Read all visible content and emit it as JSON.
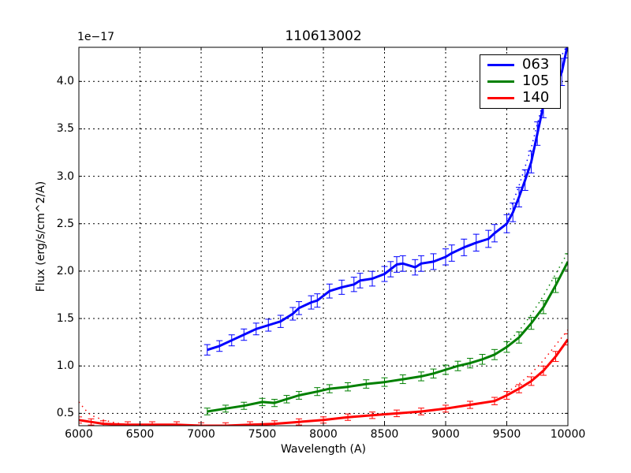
{
  "chart_data": {
    "type": "line",
    "title": "110613002",
    "xlabel": "Wavelength (A)",
    "ylabel": "Flux (erg/s/cm^2/A)",
    "y_offset_label": "1e−17",
    "xlim": [
      6000,
      10000
    ],
    "ylim": [
      0.37,
      4.36
    ],
    "grid": true,
    "legend_position": "upper right",
    "xticks": [
      "6000",
      "6500",
      "7000",
      "7500",
      "8000",
      "8500",
      "9000",
      "9500",
      "10000"
    ],
    "yticks": [
      "0.5",
      "1.0",
      "1.5",
      "2.0",
      "2.5",
      "3.0",
      "3.5",
      "4.0"
    ],
    "series": [
      {
        "name": "063",
        "color": "#0000ff",
        "error_bars": true,
        "dotted_model": true,
        "x": [
          7050,
          7150,
          7250,
          7350,
          7450,
          7550,
          7650,
          7750,
          7800,
          7900,
          7950,
          8050,
          8150,
          8250,
          8300,
          8400,
          8500,
          8550,
          8600,
          8650,
          8750,
          8800,
          8900,
          9000,
          9050,
          9150,
          9250,
          9350,
          9400,
          9500,
          9550,
          9600,
          9650,
          9700,
          9750,
          9800,
          9850,
          9900,
          9950,
          10000
        ],
        "values": [
          1.17,
          1.21,
          1.27,
          1.33,
          1.39,
          1.43,
          1.47,
          1.55,
          1.61,
          1.67,
          1.69,
          1.79,
          1.83,
          1.86,
          1.9,
          1.92,
          1.97,
          2.02,
          2.07,
          2.08,
          2.04,
          2.08,
          2.1,
          2.15,
          2.19,
          2.25,
          2.3,
          2.34,
          2.4,
          2.5,
          2.62,
          2.78,
          2.96,
          3.15,
          3.45,
          3.75,
          3.9,
          3.97,
          4.1,
          4.4
        ],
        "model_values_high_end": {
          "x": [
            9500,
            9600,
            9700,
            9800,
            9900,
            10000
          ],
          "values": [
            2.55,
            2.9,
            3.3,
            3.8,
            4.15,
            4.4
          ]
        }
      },
      {
        "name": "105",
        "color": "#008000",
        "error_bars": true,
        "dotted_model": true,
        "x": [
          7050,
          7200,
          7350,
          7500,
          7600,
          7700,
          7800,
          7950,
          8050,
          8200,
          8350,
          8500,
          8650,
          8800,
          8900,
          9000,
          9100,
          9200,
          9300,
          9400,
          9500,
          9600,
          9700,
          9800,
          9900,
          10000
        ],
        "values": [
          0.52,
          0.55,
          0.58,
          0.62,
          0.61,
          0.65,
          0.69,
          0.73,
          0.76,
          0.78,
          0.81,
          0.83,
          0.86,
          0.89,
          0.92,
          0.96,
          1.0,
          1.03,
          1.07,
          1.12,
          1.2,
          1.3,
          1.45,
          1.62,
          1.85,
          2.1
        ],
        "model_values_high_end": {
          "x": [
            9500,
            9600,
            9700,
            9800,
            9900,
            10000
          ],
          "values": [
            1.24,
            1.37,
            1.54,
            1.74,
            1.97,
            2.2
          ]
        }
      },
      {
        "name": "140",
        "color": "#ff0000",
        "error_bars": true,
        "dotted_model": true,
        "x": [
          6000,
          6100,
          6200,
          6400,
          6600,
          6800,
          7000,
          7200,
          7400,
          7600,
          7800,
          8000,
          8200,
          8400,
          8600,
          8800,
          9000,
          9200,
          9400,
          9500,
          9600,
          9700,
          9800,
          9900,
          10000
        ],
        "values": [
          0.43,
          0.41,
          0.39,
          0.38,
          0.38,
          0.38,
          0.37,
          0.37,
          0.38,
          0.39,
          0.41,
          0.43,
          0.46,
          0.48,
          0.5,
          0.52,
          0.55,
          0.59,
          0.63,
          0.69,
          0.76,
          0.84,
          0.95,
          1.1,
          1.28
        ],
        "model_values_low_end": {
          "x": [
            6000,
            6050,
            6100,
            6200,
            6300,
            6400
          ],
          "values": [
            0.62,
            0.54,
            0.48,
            0.43,
            0.4,
            0.38
          ]
        },
        "model_values_high_end": {
          "x": [
            9500,
            9600,
            9700,
            9800,
            9900,
            10000
          ],
          "values": [
            0.72,
            0.81,
            0.92,
            1.06,
            1.22,
            1.38
          ]
        }
      }
    ]
  },
  "legend": [
    {
      "label": "063",
      "color": "#0000ff"
    },
    {
      "label": "105",
      "color": "#008000"
    },
    {
      "label": "140",
      "color": "#ff0000"
    }
  ]
}
